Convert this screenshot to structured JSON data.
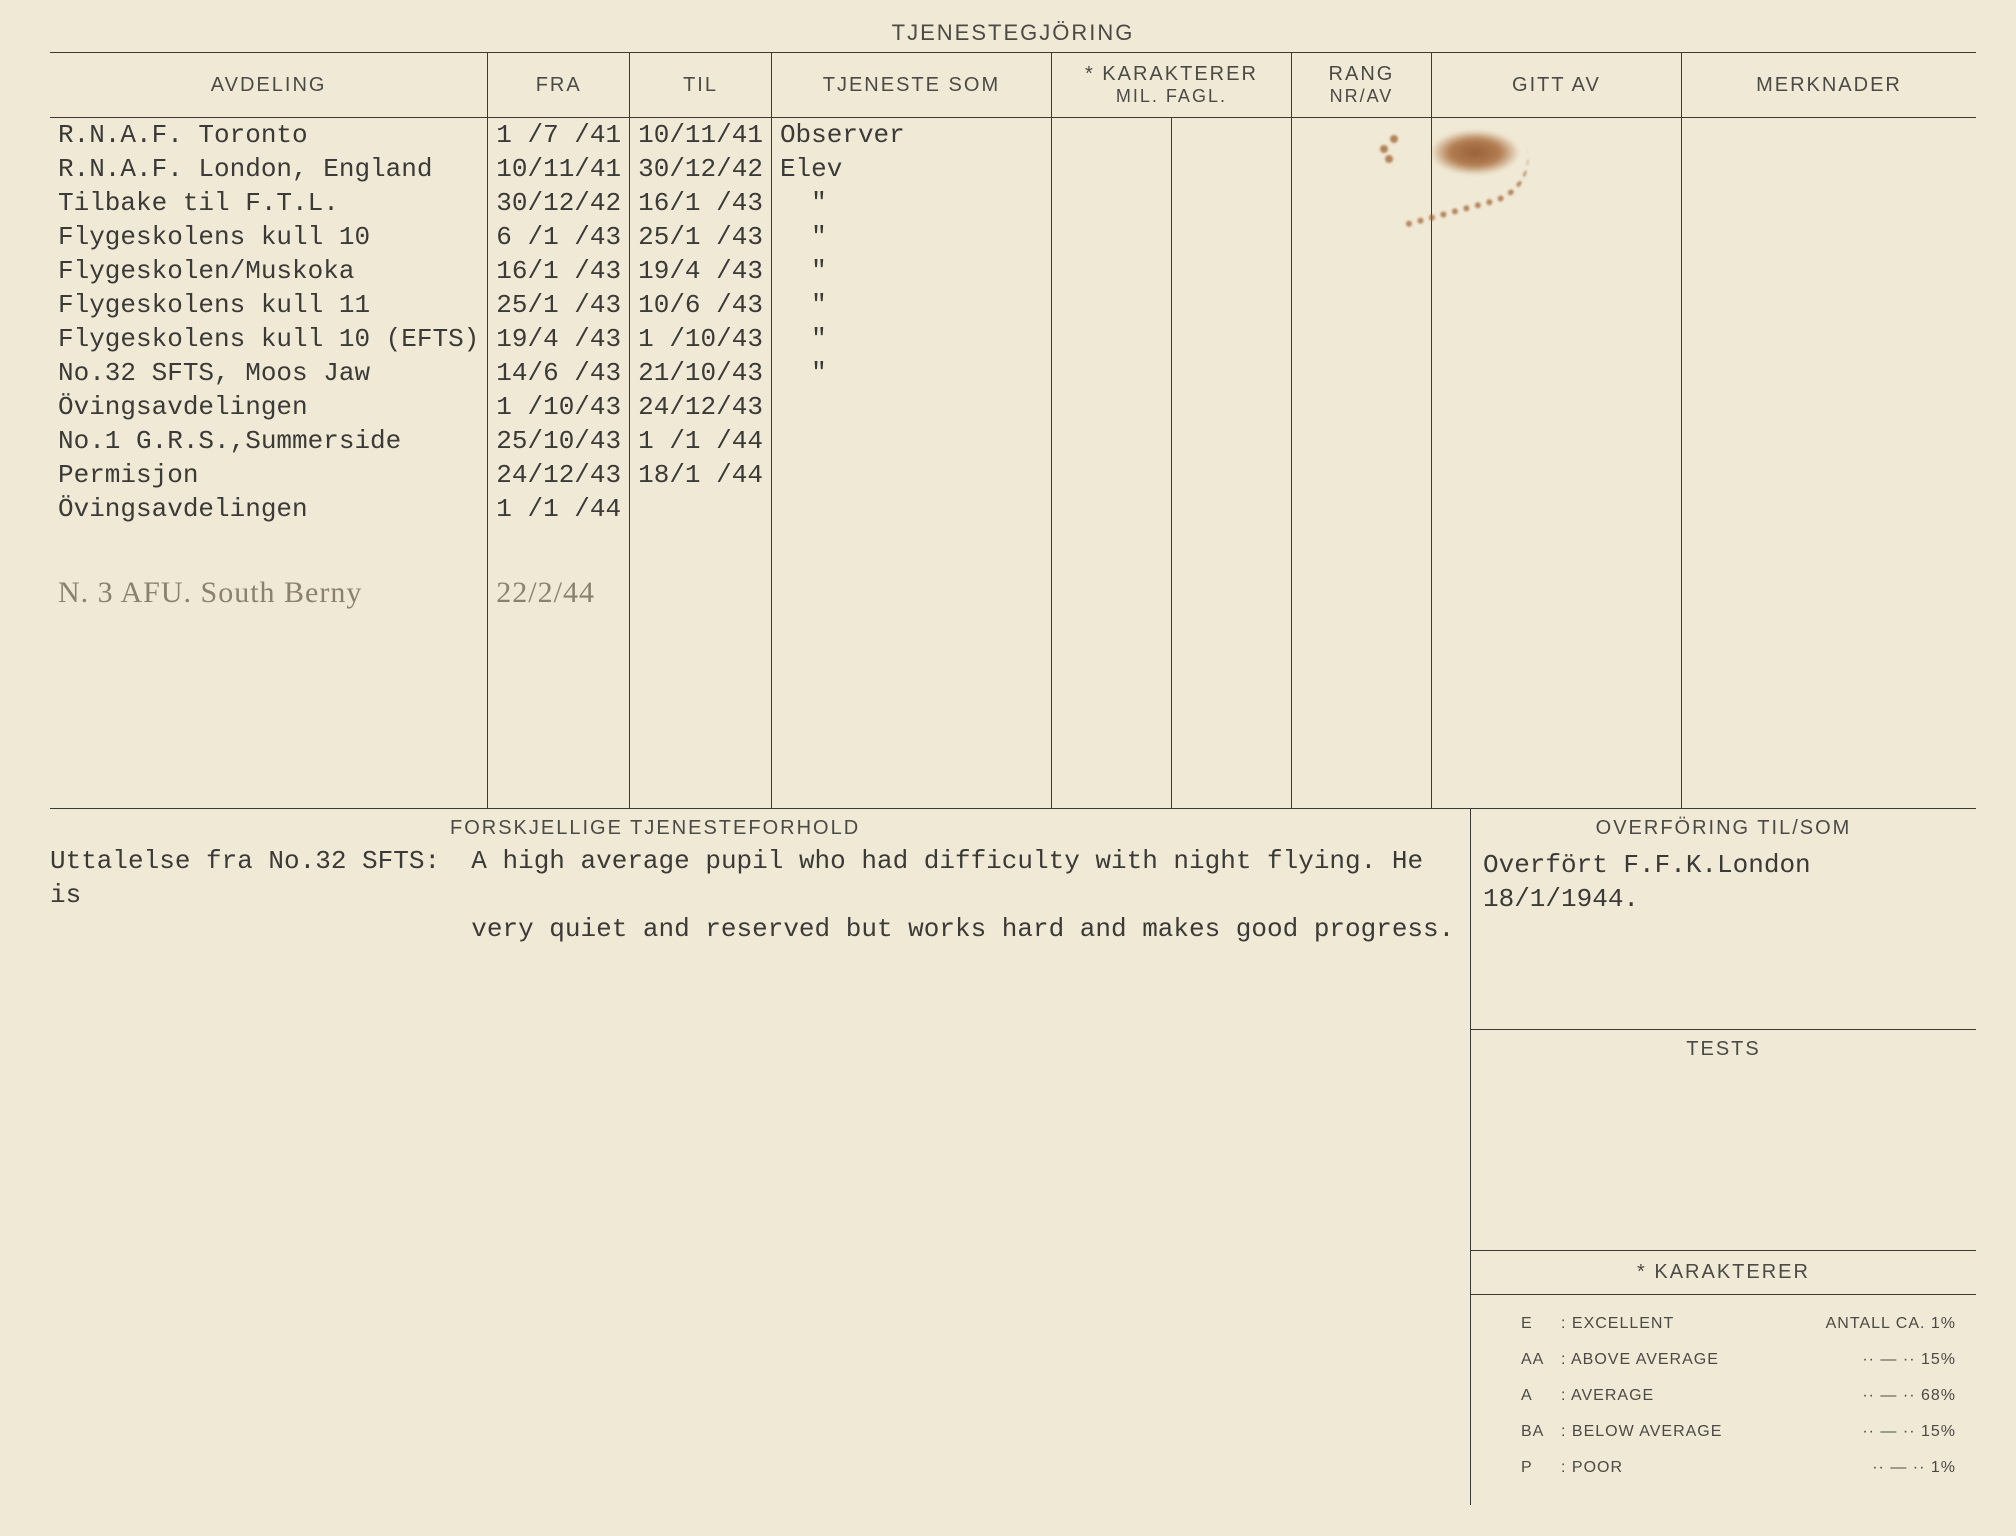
{
  "title": "TJENESTEGJÖRING",
  "headers": {
    "avdeling": "AVDELING",
    "fra": "FRA",
    "til": "TIL",
    "tjeneste": "TJENESTE  SOM",
    "karakterer_top": "* KARAKTERER",
    "karakterer_sub": "MIL.  FAGL.",
    "rang_top": "RANG",
    "rang_sub": "NR/AV",
    "gitt": "GITT  AV",
    "merknader": "MERKNADER"
  },
  "rows": [
    {
      "avd": "R.N.A.F. Toronto",
      "fra": "1 /7 /41",
      "til": "10/11/41",
      "tj": ""
    },
    {
      "avd": "R.N.A.F. London, England",
      "fra": "10/11/41",
      "til": "30/12/42",
      "tj": "Observer"
    },
    {
      "avd": "Tilbake til F.T.L.",
      "fra": "30/12/42",
      "til": "",
      "tj": ""
    },
    {
      "avd": "Flygeskolens kull 10",
      "fra": "6 /1 /43",
      "til": "16/1 /43",
      "tj": "Elev"
    },
    {
      "avd": "Flygeskolen/Muskoka",
      "fra": "16/1 /43",
      "til": "25/1 /43",
      "tj": "  \""
    },
    {
      "avd": "Flygeskolens kull 11",
      "fra": "25/1 /43",
      "til": "19/4 /43",
      "tj": "  \""
    },
    {
      "avd": "Flygeskolens kull 10 (EFTS)",
      "fra": "19/4 /43",
      "til": "10/6 /43",
      "tj": "  \""
    },
    {
      "avd": "No.32 SFTS, Moos Jaw",
      "fra": "14/6 /43",
      "til": "1 /10/43",
      "tj": "  \""
    },
    {
      "avd": "Övingsavdelingen",
      "fra": "1 /10/43",
      "til": "21/10/43",
      "tj": "  \""
    },
    {
      "avd": "No.1 G.R.S.,Summerside",
      "fra": "25/10/43",
      "til": "24/12/43",
      "tj": "  \""
    },
    {
      "avd": "Permisjon",
      "fra": "24/12/43",
      "til": "1 /1 /44",
      "tj": ""
    },
    {
      "avd": "Övingsavdelingen",
      "fra": "1 /1 /44",
      "til": "18/1 /44",
      "tj": ""
    }
  ],
  "handwritten": {
    "text": "N. 3 AFU. South Berny",
    "date": "22/2/44"
  },
  "forskjellige": {
    "heading": "FORSKJELLIGE  TJENESTEFORHOLD",
    "label": "Uttalelse fra No.32 SFTS:",
    "text": "A high average pupil who had difficulty with night flying. He is\n                           very quiet and reserved but works hard and makes good progress."
  },
  "overforing": {
    "heading": "OVERFÖRING  TIL/SOM",
    "text": "Overfört F.F.K.London 18/1/1944."
  },
  "tests": {
    "heading": "TESTS"
  },
  "karakterer": {
    "heading": "* KARAKTERER",
    "legend": [
      {
        "code": "E",
        "desc": ": EXCELLENT",
        "pct": "ANTALL CA. 1%"
      },
      {
        "code": "AA",
        "desc": ": ABOVE AVERAGE",
        "pct": "·· — ·· 15%"
      },
      {
        "code": "A",
        "desc": ": AVERAGE",
        "pct": "·· — ·· 68%"
      },
      {
        "code": "BA",
        "desc": ": BELOW AVERAGE",
        "pct": "·· — ·· 15%"
      },
      {
        "code": "P",
        "desc": ": POOR",
        "pct": "·· — ·· 1%"
      }
    ]
  },
  "col_widths": {
    "avd": "410px",
    "fra": "130px",
    "til": "130px",
    "tj": "280px",
    "mil": "120px",
    "fagl": "120px",
    "rang": "140px",
    "gitt": "250px",
    "merk": "auto"
  }
}
